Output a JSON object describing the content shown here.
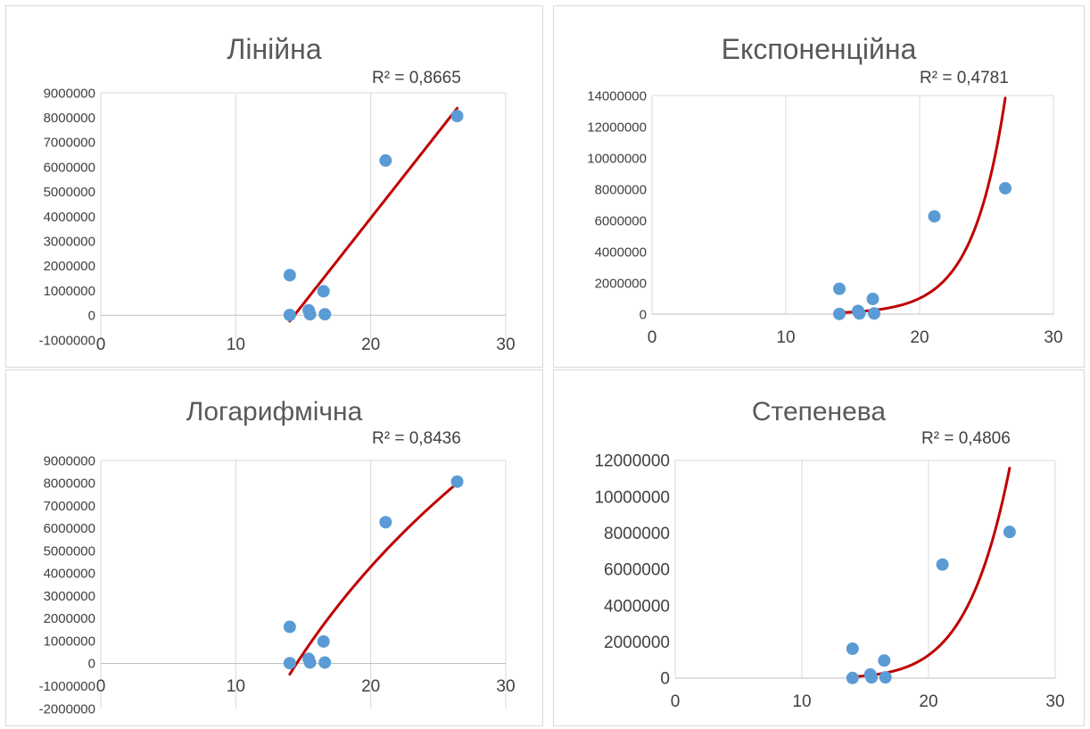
{
  "chart_data": [
    {
      "type": "scatter",
      "title": "Лінійна",
      "r2_label": "R² = 0,8665",
      "xlabel": "",
      "ylabel": "",
      "xlim": [
        0,
        30
      ],
      "ylim": [
        -1000000,
        9000000
      ],
      "x_ticks": [
        "0",
        "10",
        "20",
        "30"
      ],
      "y_ticks": [
        "9000000",
        "8000000",
        "7000000",
        "6000000",
        "5000000",
        "4000000",
        "3000000",
        "2000000",
        "1000000",
        "0",
        "-1000000"
      ],
      "grid": "vertical",
      "legend": "none",
      "marker_color": "#5b9bd5",
      "trend_color": "#c00000",
      "trendline": "linear",
      "points": [
        {
          "x": 14.0,
          "y": 1620000
        },
        {
          "x": 14.0,
          "y": 10000
        },
        {
          "x": 15.4,
          "y": 200000
        },
        {
          "x": 15.5,
          "y": 40000
        },
        {
          "x": 16.5,
          "y": 970000
        },
        {
          "x": 16.6,
          "y": 40000
        },
        {
          "x": 21.1,
          "y": 6260000
        },
        {
          "x": 26.4,
          "y": 8060000
        }
      ]
    },
    {
      "type": "scatter",
      "title": "Експоненційна",
      "r2_label": "R² = 0,4781",
      "xlabel": "",
      "ylabel": "",
      "xlim": [
        0,
        30
      ],
      "ylim": [
        0,
        14000000
      ],
      "x_ticks": [
        "0",
        "10",
        "20",
        "30"
      ],
      "y_ticks": [
        "14000000",
        "12000000",
        "10000000",
        "8000000",
        "6000000",
        "4000000",
        "2000000",
        "0"
      ],
      "grid": "vertical",
      "legend": "none",
      "marker_color": "#5b9bd5",
      "trend_color": "#c00000",
      "trendline": "exponential",
      "points": [
        {
          "x": 14.0,
          "y": 1620000
        },
        {
          "x": 14.0,
          "y": 10000
        },
        {
          "x": 15.4,
          "y": 200000
        },
        {
          "x": 15.5,
          "y": 40000
        },
        {
          "x": 16.5,
          "y": 970000
        },
        {
          "x": 16.6,
          "y": 40000
        },
        {
          "x": 21.1,
          "y": 6260000
        },
        {
          "x": 26.4,
          "y": 8060000
        }
      ]
    },
    {
      "type": "scatter",
      "title": "Логарифмічна",
      "r2_label": "R² = 0,8436",
      "xlabel": "",
      "ylabel": "",
      "xlim": [
        0,
        30
      ],
      "ylim": [
        -2000000,
        9000000
      ],
      "x_ticks": [
        "0",
        "10",
        "20",
        "30"
      ],
      "y_ticks": [
        "9000000",
        "8000000",
        "7000000",
        "6000000",
        "5000000",
        "4000000",
        "3000000",
        "2000000",
        "1000000",
        "0",
        "-1000000",
        "-2000000"
      ],
      "grid": "vertical",
      "legend": "none",
      "marker_color": "#5b9bd5",
      "trend_color": "#c00000",
      "trendline": "logarithmic",
      "points": [
        {
          "x": 14.0,
          "y": 1620000
        },
        {
          "x": 14.0,
          "y": 10000
        },
        {
          "x": 15.4,
          "y": 200000
        },
        {
          "x": 15.5,
          "y": 40000
        },
        {
          "x": 16.5,
          "y": 970000
        },
        {
          "x": 16.6,
          "y": 40000
        },
        {
          "x": 21.1,
          "y": 6260000
        },
        {
          "x": 26.4,
          "y": 8060000
        }
      ]
    },
    {
      "type": "scatter",
      "title": "Степенева",
      "r2_label": "R² = 0,4806",
      "xlabel": "",
      "ylabel": "",
      "xlim": [
        0,
        30
      ],
      "ylim": [
        0,
        12000000
      ],
      "x_ticks": [
        "0",
        "10",
        "20",
        "30"
      ],
      "y_ticks": [
        "12000000",
        "10000000",
        "8000000",
        "6000000",
        "4000000",
        "2000000",
        "0"
      ],
      "grid": "vertical",
      "legend": "none",
      "marker_color": "#5b9bd5",
      "trend_color": "#c00000",
      "trendline": "power",
      "points": [
        {
          "x": 14.0,
          "y": 1620000
        },
        {
          "x": 14.0,
          "y": 10000
        },
        {
          "x": 15.4,
          "y": 200000
        },
        {
          "x": 15.5,
          "y": 40000
        },
        {
          "x": 16.5,
          "y": 970000
        },
        {
          "x": 16.6,
          "y": 40000
        },
        {
          "x": 21.1,
          "y": 6260000
        },
        {
          "x": 26.4,
          "y": 8060000
        }
      ]
    }
  ]
}
